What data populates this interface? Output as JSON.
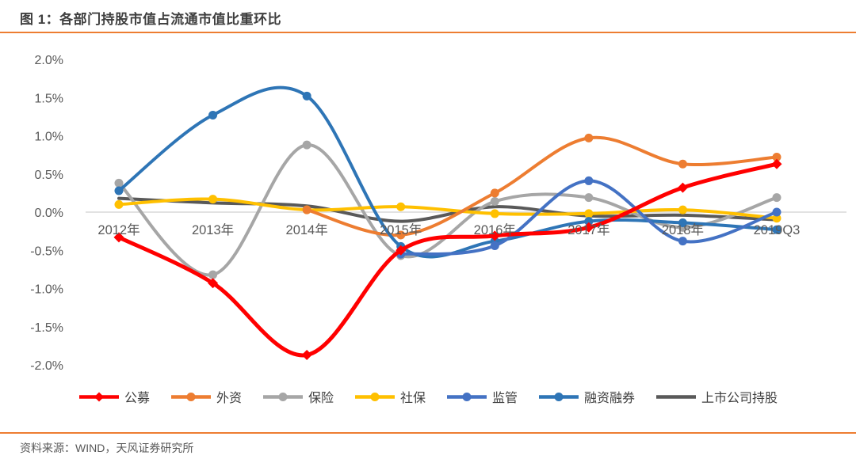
{
  "page": {
    "title": "图 1：各部门持股市值占流通市值比重环比",
    "source": "资料来源：WIND，天风证券研究所",
    "accent_color": "#ED7D31",
    "title_color": "#3F3F3F",
    "axis_text_color": "#595959",
    "zero_line_color": "#D9D9D9",
    "background_color": "#FFFFFF"
  },
  "chart_data": {
    "type": "line",
    "title": "图 1：各部门持股市值占流通市值比重环比",
    "xlabel": "",
    "ylabel": "",
    "categories": [
      "2012年",
      "2013年",
      "2014年",
      "2015年",
      "2016年",
      "2017年",
      "2018年",
      "2019Q3"
    ],
    "ylim": [
      -2.0,
      2.0
    ],
    "ytick_values": [
      2.0,
      1.5,
      1.0,
      0.5,
      0.0,
      -0.5,
      -1.0,
      -1.5,
      -2.0
    ],
    "ytick_labels": [
      "2.0%",
      "1.5%",
      "1.0%",
      "0.5%",
      "0.0%",
      "-0.5%",
      "-1.0%",
      "-1.5%",
      "-2.0%"
    ],
    "grid": "zero-line-only",
    "smooth_lines": true,
    "legend_position": "bottom",
    "unit": "percent (环比, % of 流通市值)",
    "series": [
      {
        "name": "公募",
        "color": "#FF0000",
        "marker": "diamond",
        "line_width": 5,
        "values": [
          -0.33,
          -0.93,
          -1.87,
          -0.5,
          -0.31,
          -0.2,
          0.32,
          0.63
        ]
      },
      {
        "name": "外资",
        "color": "#ED7D31",
        "marker": "circle",
        "line_width": 4,
        "values": [
          null,
          null,
          0.03,
          -0.3,
          0.25,
          0.97,
          0.63,
          0.72
        ]
      },
      {
        "name": "保险",
        "color": "#A6A6A6",
        "marker": "circle",
        "line_width": 4,
        "values": [
          0.38,
          -0.82,
          0.88,
          -0.57,
          0.14,
          0.19,
          -0.2,
          0.19
        ]
      },
      {
        "name": "社保",
        "color": "#FFC000",
        "marker": "circle",
        "line_width": 4,
        "values": [
          0.1,
          0.17,
          0.03,
          0.07,
          -0.02,
          -0.02,
          0.03,
          -0.08
        ]
      },
      {
        "name": "监管",
        "color": "#4472C4",
        "marker": "circle",
        "line_width": 4,
        "values": [
          null,
          null,
          null,
          -0.55,
          -0.44,
          0.41,
          -0.38,
          0.0
        ]
      },
      {
        "name": "融资融券",
        "color": "#2E75B6",
        "marker": "circle",
        "line_width": 4,
        "values": [
          0.28,
          1.27,
          1.52,
          -0.45,
          -0.38,
          -0.12,
          -0.14,
          -0.23
        ]
      },
      {
        "name": "上市公司持股",
        "color": "#595959",
        "marker": "none",
        "line_width": 4,
        "values": [
          0.18,
          0.12,
          0.08,
          -0.12,
          0.07,
          -0.05,
          -0.04,
          -0.1
        ]
      }
    ]
  }
}
